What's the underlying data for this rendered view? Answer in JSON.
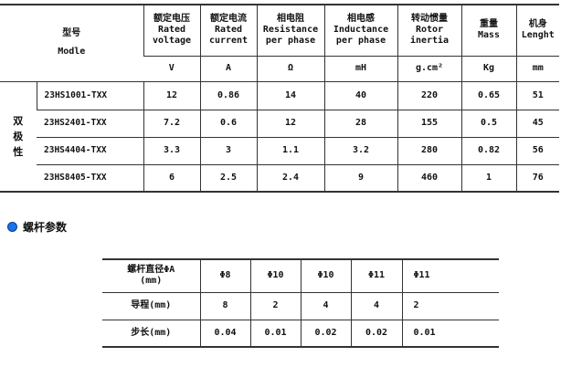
{
  "spec_table": {
    "model_header_cn": "型号",
    "model_header_en": "Modle",
    "columns": [
      {
        "cn": "额定电压",
        "en1": "Rated",
        "en2": "voltage",
        "unit": "V"
      },
      {
        "cn": "额定电流",
        "en1": "Rated",
        "en2": "current",
        "unit": "A"
      },
      {
        "cn": "相电阻",
        "en1": "Resistance",
        "en2": "per phase",
        "unit": "Ω"
      },
      {
        "cn": "相电感",
        "en1": "Inductance",
        "en2": "per phase",
        "unit": "mH"
      },
      {
        "cn": "转动惯量",
        "en1": "Rotor",
        "en2": "inertia",
        "unit": "g.cm²"
      },
      {
        "cn": "重量",
        "en1": "Mass",
        "en2": "",
        "unit": "Kg"
      },
      {
        "cn": "机身",
        "en1": "Lenght",
        "en2": "",
        "unit": "mm"
      }
    ],
    "group_label": "双极性",
    "rows": [
      {
        "model": "23HS1001-TXX",
        "values": [
          "12",
          "0.86",
          "14",
          "40",
          "220",
          "0.65",
          "51"
        ]
      },
      {
        "model": "23HS2401-TXX",
        "values": [
          "7.2",
          "0.6",
          "12",
          "28",
          "155",
          "0.5",
          "45"
        ]
      },
      {
        "model": "23HS4404-TXX",
        "values": [
          "3.3",
          "3",
          "1.1",
          "3.2",
          "280",
          "0.82",
          "56"
        ]
      },
      {
        "model": "23HS8405-TXX",
        "values": [
          "6",
          "2.5",
          "2.4",
          "9",
          "460",
          "1",
          "76"
        ]
      }
    ]
  },
  "section": {
    "title": "螺杆参数",
    "bullet_color": "#1a73e8"
  },
  "screw_table": {
    "rows": [
      {
        "label1": "螺杆直径ΦA",
        "label2": "(mm)",
        "values": [
          "Φ8",
          "Φ10",
          "Φ10",
          "Φ11",
          "Φ11"
        ]
      },
      {
        "label1": "导程(mm)",
        "label2": "",
        "values": [
          "8",
          "2",
          "4",
          "4",
          "2"
        ]
      },
      {
        "label1": "步长(mm)",
        "label2": "",
        "values": [
          "0.04",
          "0.01",
          "0.02",
          "0.02",
          "0.01"
        ]
      }
    ]
  }
}
